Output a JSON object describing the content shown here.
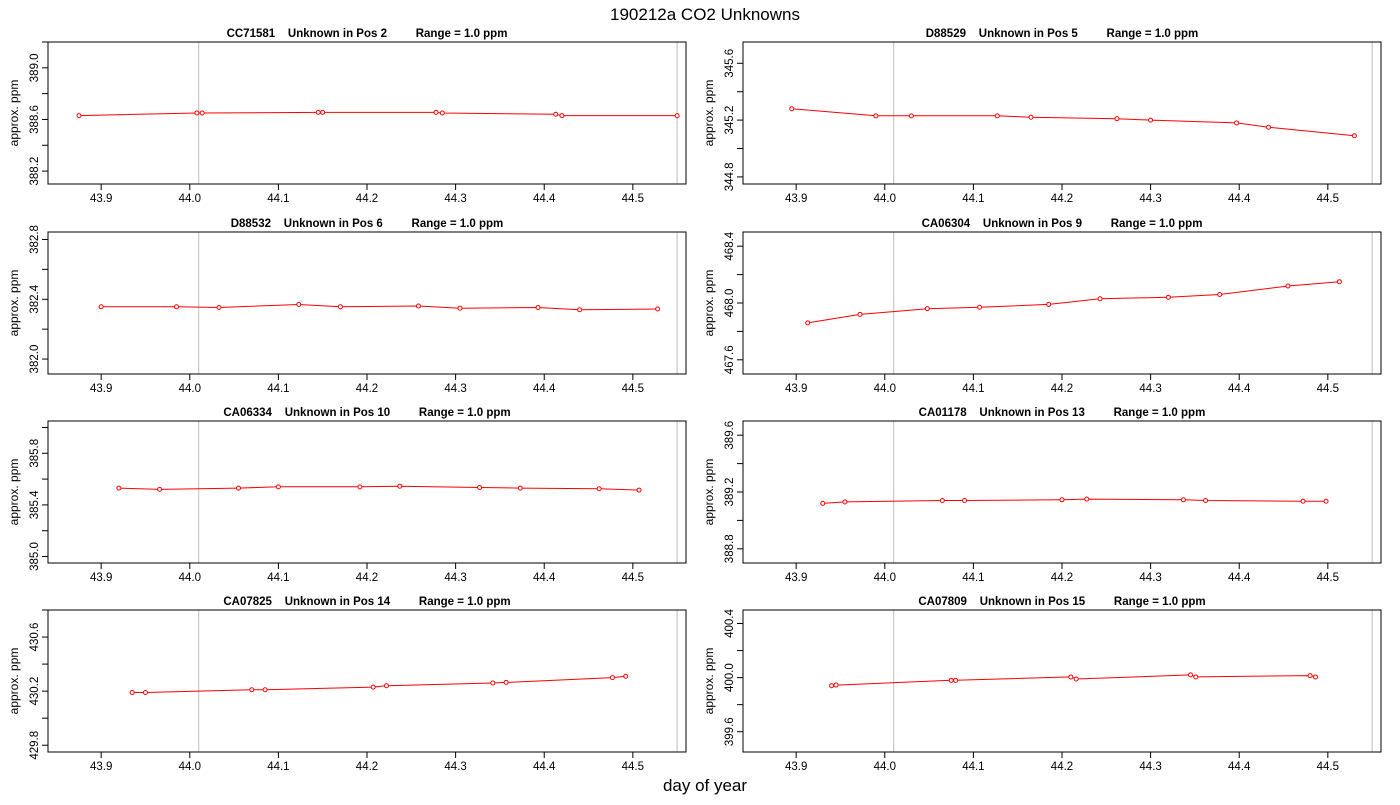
{
  "figure": {
    "title": "190212a  CO2 Unknowns",
    "xlabel": "day of year"
  },
  "chart_data": [
    {
      "type": "line",
      "title": "CC71581    Unknown in Pos 2         Range = 1.0 ppm",
      "ylabel": "approx. ppm",
      "xlim": [
        43.84,
        44.56
      ],
      "ylim": [
        388.1,
        389.2
      ],
      "xticks": [
        "43.9",
        "44.0",
        "44.1",
        "44.2",
        "44.3",
        "44.4",
        "44.5"
      ],
      "yticks": [
        "388.2",
        "388.6",
        "389.0"
      ],
      "vlines": [
        44.01,
        44.55
      ],
      "color": "#ff0000",
      "x": [
        43.875,
        44.008,
        44.014,
        44.145,
        44.15,
        44.278,
        44.285,
        44.413,
        44.42,
        44.55
      ],
      "y": [
        388.63,
        388.65,
        388.65,
        388.655,
        388.655,
        388.655,
        388.65,
        388.64,
        388.63,
        388.63
      ]
    },
    {
      "type": "line",
      "title": "D88529    Unknown in Pos 5         Range = 1.0 ppm",
      "ylabel": "approx. ppm",
      "xlim": [
        43.84,
        44.56
      ],
      "ylim": [
        344.75,
        345.75
      ],
      "xticks": [
        "43.9",
        "44.0",
        "44.1",
        "44.2",
        "44.3",
        "44.4",
        "44.5"
      ],
      "yticks": [
        "344.8",
        "345.2",
        "345.6"
      ],
      "vlines": [
        44.01,
        44.55
      ],
      "color": "#ff0000",
      "x": [
        43.895,
        43.99,
        44.03,
        44.127,
        44.165,
        44.262,
        44.3,
        44.397,
        44.433,
        44.53
      ],
      "y": [
        345.28,
        345.23,
        345.23,
        345.23,
        345.22,
        345.21,
        345.2,
        345.18,
        345.15,
        345.09
      ]
    },
    {
      "type": "line",
      "title": "D88532    Unknown in Pos 6         Range = 1.0 ppm",
      "ylabel": "approx. ppm",
      "xlim": [
        43.84,
        44.56
      ],
      "ylim": [
        381.9,
        382.85
      ],
      "xticks": [
        "43.9",
        "44.0",
        "44.1",
        "44.2",
        "44.3",
        "44.4",
        "44.5"
      ],
      "yticks": [
        "382.0",
        "382.4",
        "382.8"
      ],
      "vlines": [
        44.01,
        44.55
      ],
      "color": "#ff0000",
      "x": [
        43.9,
        43.985,
        44.033,
        44.123,
        44.17,
        44.258,
        44.305,
        44.393,
        44.44,
        44.528
      ],
      "y": [
        382.35,
        382.35,
        382.345,
        382.365,
        382.35,
        382.355,
        382.34,
        382.345,
        382.33,
        382.335
      ]
    },
    {
      "type": "line",
      "title": "CA06304    Unknown in Pos 9         Range = 1.0 ppm",
      "ylabel": "approx. ppm",
      "xlim": [
        43.84,
        44.56
      ],
      "ylim": [
        467.5,
        468.5
      ],
      "xticks": [
        "43.9",
        "44.0",
        "44.1",
        "44.2",
        "44.3",
        "44.4",
        "44.5"
      ],
      "yticks": [
        "467.6",
        "468.0",
        "468.4"
      ],
      "vlines": [
        44.01,
        44.55
      ],
      "color": "#ff0000",
      "x": [
        43.913,
        43.972,
        44.048,
        44.107,
        44.185,
        44.243,
        44.32,
        44.378,
        44.455,
        44.513
      ],
      "y": [
        467.86,
        467.92,
        467.96,
        467.97,
        467.99,
        468.03,
        468.04,
        468.06,
        468.12,
        468.15
      ]
    },
    {
      "type": "line",
      "title": "CA06334    Unknown in Pos 10         Range = 1.0 ppm",
      "ylabel": "approx. ppm",
      "xlim": [
        43.84,
        44.56
      ],
      "ylim": [
        384.95,
        386.05
      ],
      "xticks": [
        "43.9",
        "44.0",
        "44.1",
        "44.2",
        "44.3",
        "44.4",
        "44.5"
      ],
      "yticks": [
        "385.0",
        "385.4",
        "385.8"
      ],
      "vlines": [
        44.01,
        44.55
      ],
      "color": "#ff0000",
      "x": [
        43.92,
        43.966,
        44.055,
        44.1,
        44.192,
        44.237,
        44.327,
        44.373,
        44.462,
        44.507
      ],
      "y": [
        385.53,
        385.52,
        385.53,
        385.54,
        385.54,
        385.545,
        385.535,
        385.53,
        385.525,
        385.515
      ]
    },
    {
      "type": "line",
      "title": "CA01178    Unknown in Pos 13         Range = 1.0 ppm",
      "ylabel": "approx. ppm",
      "xlim": [
        43.84,
        44.56
      ],
      "ylim": [
        388.7,
        389.7
      ],
      "xticks": [
        "43.9",
        "44.0",
        "44.1",
        "44.2",
        "44.3",
        "44.4",
        "44.5"
      ],
      "yticks": [
        "388.8",
        "389.2",
        "389.6"
      ],
      "vlines": [
        44.01,
        44.55
      ],
      "color": "#ff0000",
      "x": [
        43.93,
        43.955,
        44.065,
        44.09,
        44.2,
        44.228,
        44.337,
        44.362,
        44.472,
        44.498
      ],
      "y": [
        389.12,
        389.13,
        389.14,
        389.14,
        389.145,
        389.15,
        389.145,
        389.14,
        389.135,
        389.135
      ]
    },
    {
      "type": "line",
      "title": "CA07825    Unknown in Pos 14         Range = 1.0 ppm",
      "ylabel": "approx. ppm",
      "xlim": [
        43.84,
        44.56
      ],
      "ylim": [
        429.75,
        430.8
      ],
      "xticks": [
        "43.9",
        "44.0",
        "44.1",
        "44.2",
        "44.3",
        "44.4",
        "44.5"
      ],
      "yticks": [
        "429.8",
        "430.2",
        "430.6"
      ],
      "vlines": [
        44.01,
        44.55
      ],
      "color": "#ff0000",
      "x": [
        43.935,
        43.95,
        44.07,
        44.085,
        44.207,
        44.222,
        44.342,
        44.357,
        44.477,
        44.492
      ],
      "y": [
        430.19,
        430.19,
        430.21,
        430.21,
        430.23,
        430.24,
        430.26,
        430.265,
        430.3,
        430.31
      ]
    },
    {
      "type": "line",
      "title": "CA07809    Unknown in Pos 15         Range = 1.0 ppm",
      "ylabel": "approx. ppm",
      "xlim": [
        43.84,
        44.56
      ],
      "ylim": [
        399.45,
        400.5
      ],
      "xticks": [
        "43.9",
        "44.0",
        "44.1",
        "44.2",
        "44.3",
        "44.4",
        "44.5"
      ],
      "yticks": [
        "399.6",
        "400.0",
        "400.4"
      ],
      "vlines": [
        44.01,
        44.55
      ],
      "color": "#ff0000",
      "x": [
        43.94,
        43.945,
        44.075,
        44.08,
        44.21,
        44.216,
        44.345,
        44.351,
        44.48,
        44.486
      ],
      "y": [
        399.94,
        399.945,
        399.98,
        399.98,
        400.005,
        399.99,
        400.02,
        400.005,
        400.015,
        400.005
      ]
    }
  ]
}
